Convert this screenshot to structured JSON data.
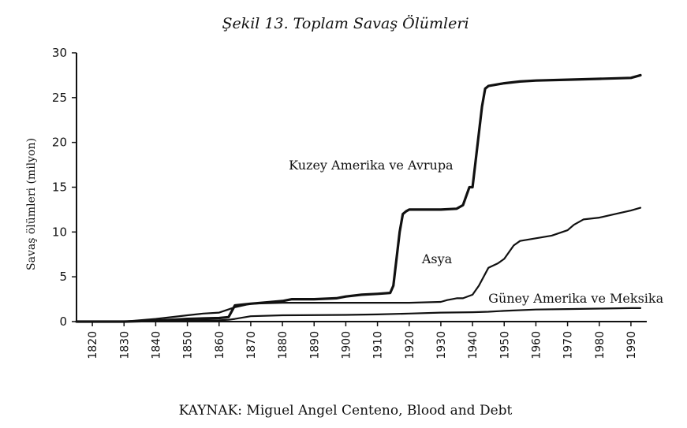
{
  "chart_data": {
    "type": "line",
    "title": "Şekil 13. Toplam Savaş Ölümleri",
    "ylabel": "Savaş ölümleri (milyon)",
    "xlabel": "",
    "source": "KAYNAK: Miguel Angel Centeno, Blood and Debt",
    "xlim": [
      1815,
      1995
    ],
    "ylim": [
      0,
      30
    ],
    "x_ticks": [
      "1820",
      "1830",
      "1840",
      "1850",
      "1860",
      "1870",
      "1880",
      "1890",
      "1900",
      "1910",
      "1920",
      "1930",
      "1940",
      "1950",
      "1960",
      "1970",
      "1980",
      "1990"
    ],
    "y_ticks": [
      "0",
      "5",
      "10",
      "15",
      "20",
      "25",
      "30"
    ],
    "grid": false,
    "series": [
      {
        "name": "Kuzey Amerika ve Avrupa",
        "x": [
          1815,
          1830,
          1840,
          1845,
          1850,
          1855,
          1860,
          1863,
          1865,
          1870,
          1880,
          1883,
          1890,
          1897,
          1900,
          1905,
          1910,
          1914,
          1915,
          1916,
          1917,
          1918,
          1919,
          1920,
          1925,
          1930,
          1935,
          1937,
          1939,
          1940,
          1941,
          1942,
          1943,
          1944,
          1945,
          1950,
          1955,
          1960,
          1970,
          1980,
          1990,
          1993
        ],
        "values": [
          0,
          0,
          0.1,
          0.2,
          0.3,
          0.35,
          0.4,
          0.5,
          1.8,
          2.0,
          2.3,
          2.5,
          2.5,
          2.6,
          2.8,
          3.0,
          3.1,
          3.2,
          4.0,
          7.0,
          10.0,
          12.0,
          12.3,
          12.5,
          12.5,
          12.5,
          12.6,
          13.0,
          15.0,
          15.0,
          18.0,
          21.0,
          24.0,
          26.0,
          26.3,
          26.6,
          26.8,
          26.9,
          27.0,
          27.1,
          27.2,
          27.5
        ]
      },
      {
        "name": "Asya",
        "x": [
          1815,
          1830,
          1840,
          1850,
          1855,
          1860,
          1865,
          1870,
          1880,
          1890,
          1900,
          1910,
          1920,
          1930,
          1932,
          1935,
          1937,
          1940,
          1942,
          1945,
          1948,
          1950,
          1953,
          1955,
          1960,
          1965,
          1970,
          1972,
          1975,
          1980,
          1985,
          1990,
          1993
        ],
        "values": [
          0,
          0,
          0.3,
          0.7,
          0.9,
          1.0,
          1.6,
          2.0,
          2.1,
          2.1,
          2.1,
          2.1,
          2.1,
          2.2,
          2.4,
          2.6,
          2.6,
          3.0,
          4.0,
          6.0,
          6.5,
          7.0,
          8.5,
          9.0,
          9.3,
          9.6,
          10.2,
          10.8,
          11.4,
          11.6,
          12.0,
          12.4,
          12.7
        ]
      },
      {
        "name": "Güney Amerika ve Meksika",
        "x": [
          1815,
          1830,
          1840,
          1850,
          1860,
          1863,
          1865,
          1870,
          1880,
          1900,
          1910,
          1920,
          1930,
          1940,
          1945,
          1950,
          1960,
          1970,
          1980,
          1990,
          1993
        ],
        "values": [
          0,
          0,
          0.05,
          0.1,
          0.15,
          0.2,
          0.3,
          0.6,
          0.7,
          0.75,
          0.8,
          0.9,
          1.0,
          1.05,
          1.1,
          1.2,
          1.35,
          1.4,
          1.45,
          1.5,
          1.5
        ]
      }
    ],
    "annotations": [
      {
        "text": "Kuzey Amerika ve Avrupa",
        "x": 1882,
        "y": 17.0
      },
      {
        "text": "Asya",
        "x": 1924,
        "y": 6.5
      },
      {
        "text": "Güney Amerika ve Meksika",
        "x": 1945,
        "y": 2.1
      }
    ]
  }
}
